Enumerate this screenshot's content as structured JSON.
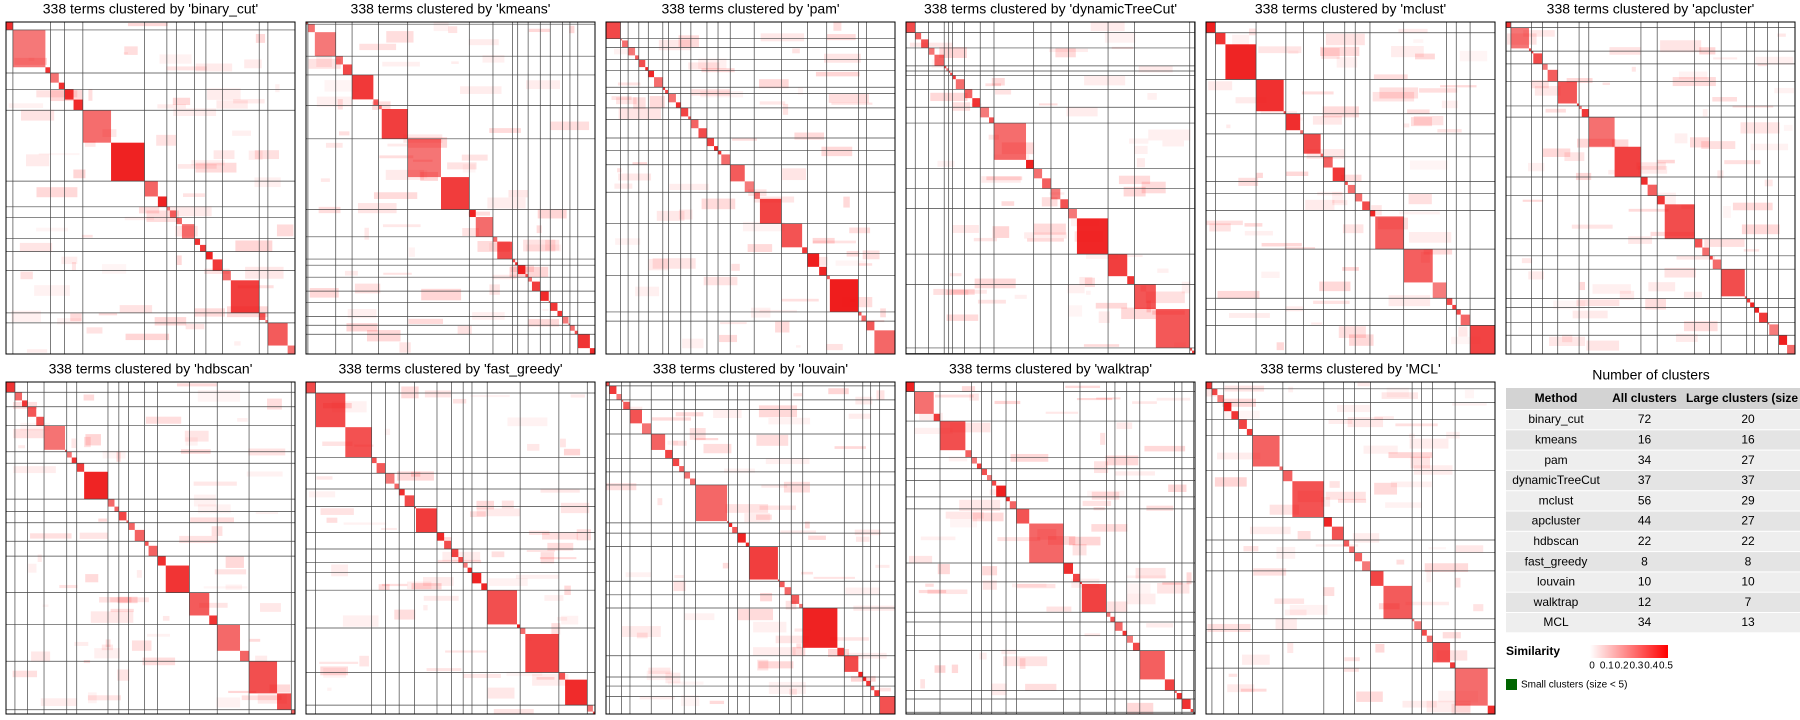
{
  "panels": [
    {
      "title": "338 terms clustered by 'binary_cut'"
    },
    {
      "title": "338 terms clustered by 'kmeans'"
    },
    {
      "title": "338 terms clustered by 'pam'"
    },
    {
      "title": "338 terms clustered by 'dynamicTreeCut'"
    },
    {
      "title": "338 terms clustered by 'mclust'"
    },
    {
      "title": "338 terms clustered by 'apcluster'"
    },
    {
      "title": "338 terms clustered by 'hdbscan'"
    },
    {
      "title": "338 terms clustered by 'fast_greedy'"
    },
    {
      "title": "338 terms clustered by 'louvain'"
    },
    {
      "title": "338 terms clustered by 'walktrap'"
    },
    {
      "title": "338 terms clustered by 'MCL'"
    }
  ],
  "table": {
    "title": "Number of clusters",
    "header": [
      "Method",
      "All clusters",
      "Large clusters (size"
    ],
    "rows": [
      [
        "binary_cut",
        72,
        20
      ],
      [
        "kmeans",
        16,
        16
      ],
      [
        "pam",
        34,
        27
      ],
      [
        "dynamicTreeCut",
        37,
        37
      ],
      [
        "mclust",
        56,
        29
      ],
      [
        "apcluster",
        44,
        27
      ],
      [
        "hdbscan",
        22,
        22
      ],
      [
        "fast_greedy",
        8,
        8
      ],
      [
        "louvain",
        10,
        10
      ],
      [
        "walktrap",
        12,
        7
      ],
      [
        "MCL",
        34,
        13
      ]
    ]
  },
  "legend": {
    "title": "Similarity",
    "ticks": [
      0,
      0.1,
      0.2,
      0.3,
      0.4,
      0.5
    ],
    "small_label": "Small clusters (size < 5)"
  }
}
